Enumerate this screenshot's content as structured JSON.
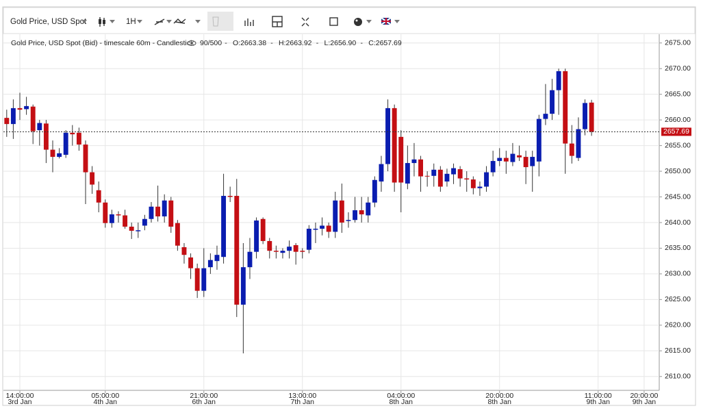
{
  "toolbar": {
    "instrument": "Gold Price, USD Spot",
    "timeframe": "1H"
  },
  "chart_data": {
    "type": "candlestick",
    "legend": {
      "title": "Gold Price, USD Spot (Bid) - timescale 60m - Candlestick",
      "count": "90/500",
      "ohlc": [
        "O:2663.38",
        "H:2663.92",
        "L:2656.90",
        "C:2657.69"
      ]
    },
    "up_color": "#0a1db0",
    "down_color": "#c40f14",
    "open": [
      2660.4,
      2659.2,
      2662.3,
      2662.1,
      2662.6,
      2658,
      2659.3,
      2654.2,
      2652.8,
      2653.2,
      2657.5,
      2657.5,
      2655.2,
      2649.8,
      2646.3,
      2643.9,
      2639.9,
      2641.6,
      2641.4,
      2639.2,
      2638.3,
      2639.4,
      2640.7,
      2643.1,
      2641.2,
      2644.3,
      2639.9,
      2635.2,
      2633.2,
      2631.1,
      2626.7,
      2631.3,
      2632.5,
      2633.3,
      2645.2,
      2645.2,
      2624,
      2631.3,
      2634.3,
      2640.7,
      2636.4,
      2634.5,
      2634.1,
      2634.5,
      2635.6,
      2634.5,
      2634.7,
      2638.6,
      2638.8,
      2639.4,
      2638.2,
      2644.3,
      2640.3,
      2640.5,
      2642.4,
      2641.4,
      2643.9,
      2648,
      2651.4,
      2662.3,
      2656.7,
      2647.6,
      2651.6,
      2652.3,
      2649.1,
      2649.1,
      2650.3,
      2648,
      2649.4,
      2650.4,
      2648.6,
      2648.4,
      2646.7,
      2647,
      2649.8,
      2652,
      2652.6,
      2651.8,
      2653.1,
      2652.8,
      2651,
      2651.9,
      2660.2,
      2661.2,
      2665.8,
      2669.5,
      2655.4,
      2652.6,
      2658.2,
      2663.38
    ],
    "high": [
      2662,
      2664,
      2665.3,
      2664.5,
      2663,
      2660,
      2660,
      2656,
      2654.5,
      2658,
      2659,
      2658.5,
      2656,
      2651,
      2648,
      2644.5,
      2642.5,
      2642.2,
      2642.5,
      2640,
      2640,
      2641.5,
      2644,
      2647.2,
      2645.5,
      2645,
      2640.5,
      2636,
      2634,
      2632,
      2635,
      2634,
      2635.5,
      2649.5,
      2647,
      2648.5,
      2636,
      2637,
      2641,
      2641,
      2637,
      2635.5,
      2635,
      2636.5,
      2636,
      2635,
      2639.5,
      2640,
      2641,
      2640,
      2646,
      2647.6,
      2642,
      2645,
      2645,
      2645,
      2649,
      2653,
      2664,
      2663,
      2658,
      2655,
      2655.5,
      2653,
      2650,
      2651.5,
      2651,
      2650.5,
      2651.5,
      2651,
      2650,
      2649,
      2648,
      2651,
      2654,
      2654.5,
      2654,
      2655.5,
      2655,
      2654,
      2654,
      2661,
      2667,
      2668,
      2670,
      2670,
      2659,
      2660.5,
      2664,
      2663.92
    ],
    "low": [
      2656.7,
      2656.3,
      2660,
      2661,
      2655.3,
      2655,
      2651.6,
      2649.8,
      2652.5,
      2652.6,
      2655,
      2654,
      2643.6,
      2645.6,
      2642,
      2639,
      2639,
      2640,
      2638.8,
      2636.8,
      2637,
      2638.5,
      2640,
      2640.2,
      2640,
      2638,
      2634.5,
      2632,
      2629,
      2625.3,
      2625.5,
      2630,
      2630.8,
      2632,
      2644,
      2621.6,
      2614.5,
      2629,
      2633,
      2635.8,
      2633,
      2633,
      2633,
      2633,
      2631.8,
      2633,
      2634,
      2636,
      2637.5,
      2637,
      2637,
      2638,
      2639,
      2640,
      2640,
      2640,
      2643,
      2646,
      2650,
      2646,
      2642,
      2646.5,
      2649,
      2646,
      2647,
      2647,
      2646,
      2647,
      2647.5,
      2647,
      2646,
      2645.5,
      2645.2,
      2646,
      2649,
      2651,
      2649.5,
      2651,
      2652,
      2647.5,
      2646,
      2649,
      2659,
      2660,
      2661,
      2649.5,
      2651.5,
      2652,
      2657,
      2656.9
    ],
    "close": [
      2659.2,
      2662.3,
      2662.0,
      2662.7,
      2657.8,
      2659.4,
      2654.2,
      2652.8,
      2653.5,
      2657.5,
      2657.2,
      2655.2,
      2649.8,
      2647.4,
      2643.9,
      2639.9,
      2641.6,
      2641.4,
      2639.2,
      2638.4,
      2638.5,
      2640.7,
      2643.1,
      2641.2,
      2644.3,
      2639.2,
      2635.5,
      2633.7,
      2631.1,
      2626.7,
      2631.1,
      2632.7,
      2633.7,
      2645.2,
      2645.0,
      2624,
      2631.3,
      2634.3,
      2640.4,
      2636.4,
      2634.5,
      2634.3,
      2634.5,
      2635.3,
      2634.3,
      2634.3,
      2638.8,
      2638.8,
      2639.4,
      2638.2,
      2644.3,
      2640,
      2640.5,
      2642.4,
      2641.6,
      2643.9,
      2648.3,
      2651.4,
      2662.3,
      2647.8,
      2647.8,
      2651.6,
      2652.3,
      2649,
      2649,
      2650.3,
      2647,
      2649.5,
      2650.6,
      2648.6,
      2648.4,
      2646.7,
      2647,
      2649.8,
      2652,
      2652.6,
      2651.9,
      2653.4,
      2652.7,
      2650.8,
      2652.8,
      2660.2,
      2661.2,
      2665.8,
      2669.5,
      2655.4,
      2653,
      2658.2,
      2663.3,
      2657.69
    ],
    "last_price": 2657.69,
    "xlim": [
      -0.5,
      99.3
    ],
    "xticks": [
      {
        "value": 2,
        "label": "14:00:00",
        "date": "3rd Jan"
      },
      {
        "value": 15,
        "label": "05:00:00",
        "date": "4th Jan"
      },
      {
        "value": 30,
        "label": "21:00:00",
        "date": "6th Jan"
      },
      {
        "value": 45,
        "label": "13:00:00",
        "date": "7th Jan"
      },
      {
        "value": 60,
        "label": "04:00:00",
        "date": "8th Jan"
      },
      {
        "value": 75,
        "label": "20:00:00",
        "date": "8th Jan"
      },
      {
        "value": 90,
        "label": "11:00:00",
        "date": "9th Jan"
      },
      {
        "value": 97,
        "label": "20:00:00",
        "date": "9th Jan"
      }
    ],
    "ylim": [
      2607.3,
      2676.7
    ],
    "yticks": [
      {
        "value": 2610,
        "label": "2610.00"
      },
      {
        "value": 2615,
        "label": "2615.00"
      },
      {
        "value": 2620,
        "label": "2620.00"
      },
      {
        "value": 2625,
        "label": "2625.00"
      },
      {
        "value": 2630,
        "label": "2630.00"
      },
      {
        "value": 2635,
        "label": "2635.00"
      },
      {
        "value": 2640,
        "label": "2640.00"
      },
      {
        "value": 2645,
        "label": "2645.00"
      },
      {
        "value": 2650,
        "label": "2650.00"
      },
      {
        "value": 2655,
        "label": "2655.00"
      },
      {
        "value": 2660,
        "label": "2660.00"
      },
      {
        "value": 2665,
        "label": "2665.00"
      },
      {
        "value": 2670,
        "label": "2670.00"
      },
      {
        "value": 2675,
        "label": "2675.00"
      }
    ],
    "grid": true
  }
}
